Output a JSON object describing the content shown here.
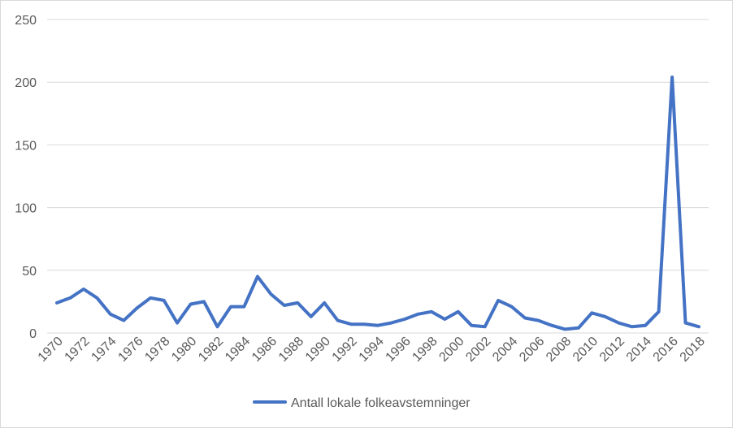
{
  "chart_data": {
    "type": "line",
    "title": "",
    "xlabel": "",
    "ylabel": "",
    "ylim": [
      0,
      250
    ],
    "yticks": [
      "0",
      "50",
      "100",
      "150",
      "200",
      "250"
    ],
    "xticks": [
      "1970",
      "1972",
      "1974",
      "1976",
      "1978",
      "1980",
      "1982",
      "1984",
      "1986",
      "1988",
      "1990",
      "1992",
      "1994",
      "1996",
      "1998",
      "2000",
      "2002",
      "2004",
      "2006",
      "2008",
      "2010",
      "2012",
      "2014",
      "2016",
      "2018"
    ],
    "grid": true,
    "legend_position": "bottom",
    "series_color": "#4472c4",
    "series": [
      {
        "name": "Antall lokale folkeavstemninger",
        "x": [
          1970,
          1971,
          1972,
          1973,
          1974,
          1975,
          1976,
          1977,
          1978,
          1979,
          1980,
          1981,
          1982,
          1983,
          1984,
          1985,
          1986,
          1987,
          1988,
          1989,
          1990,
          1991,
          1992,
          1993,
          1994,
          1995,
          1996,
          1997,
          1998,
          1999,
          2000,
          2001,
          2002,
          2003,
          2004,
          2005,
          2006,
          2007,
          2008,
          2009,
          2010,
          2011,
          2012,
          2013,
          2014,
          2015,
          2016,
          2017,
          2018
        ],
        "values": [
          24,
          28,
          35,
          28,
          15,
          10,
          20,
          28,
          26,
          8,
          23,
          25,
          5,
          21,
          21,
          45,
          31,
          22,
          24,
          13,
          24,
          10,
          7,
          7,
          6,
          8,
          11,
          15,
          17,
          11,
          17,
          6,
          5,
          26,
          21,
          12,
          10,
          6,
          3,
          4,
          16,
          13,
          8,
          5,
          6,
          17,
          204,
          8,
          5
        ]
      }
    ]
  }
}
